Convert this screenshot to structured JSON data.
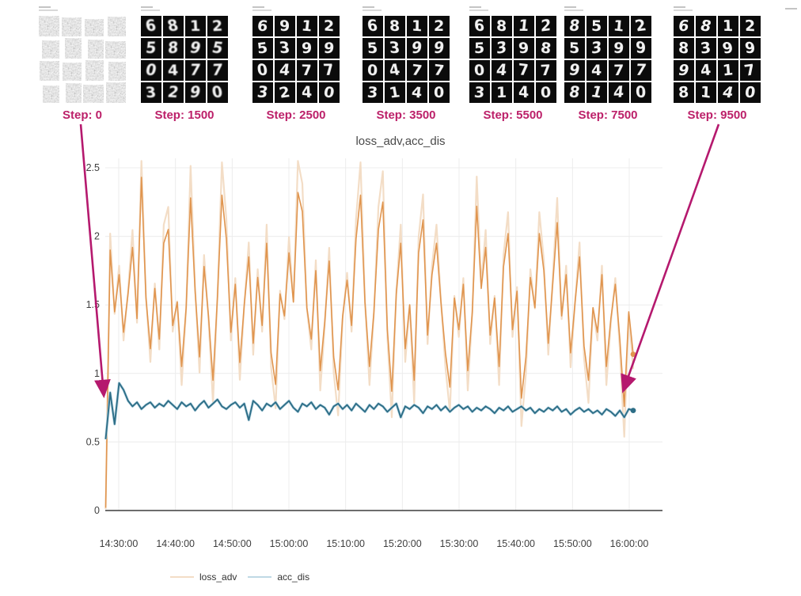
{
  "accent_color": "#b5196e",
  "step_label_color": "#bc2069",
  "panels": [
    {
      "label": "Step: 0",
      "type": "noise",
      "digits": null
    },
    {
      "label": "Step: 1500",
      "type": "digits",
      "digits": [
        [
          6,
          8,
          1,
          2
        ],
        [
          5,
          8,
          9,
          5
        ],
        [
          0,
          4,
          7,
          7
        ],
        [
          3,
          2,
          9,
          0
        ]
      ]
    },
    {
      "label": "Step: 2500",
      "type": "digits",
      "digits": [
        [
          6,
          9,
          1,
          2
        ],
        [
          5,
          3,
          9,
          9
        ],
        [
          0,
          4,
          7,
          7
        ],
        [
          3,
          2,
          4,
          0
        ]
      ]
    },
    {
      "label": "Step: 3500",
      "type": "digits",
      "digits": [
        [
          6,
          8,
          1,
          2
        ],
        [
          5,
          3,
          9,
          9
        ],
        [
          0,
          4,
          7,
          7
        ],
        [
          3,
          1,
          4,
          0
        ]
      ]
    },
    {
      "label": "Step: 5500",
      "type": "digits",
      "digits": [
        [
          6,
          8,
          1,
          2
        ],
        [
          5,
          3,
          9,
          8
        ],
        [
          0,
          4,
          7,
          7
        ],
        [
          3,
          1,
          4,
          0
        ]
      ]
    },
    {
      "label": "Step: 7500",
      "type": "digits",
      "digits": [
        [
          8,
          5,
          1,
          2
        ],
        [
          5,
          3,
          9,
          9
        ],
        [
          9,
          4,
          7,
          7
        ],
        [
          8,
          1,
          4,
          0
        ]
      ]
    },
    {
      "label": "Step: 9500",
      "type": "digits",
      "digits": [
        [
          6,
          8,
          1,
          2
        ],
        [
          8,
          3,
          9,
          9
        ],
        [
          9,
          4,
          1,
          7
        ],
        [
          8,
          1,
          4,
          0
        ]
      ]
    }
  ],
  "chart_data": {
    "type": "line",
    "title": "loss_adv,acc_dis",
    "xlabel": "",
    "ylabel": "",
    "ylim": [
      0,
      2.6
    ],
    "y_ticks": [
      0,
      0.5,
      1,
      1.5,
      2,
      2.5
    ],
    "x_tick_labels": [
      "14:30:00",
      "14:40:00",
      "14:50:00",
      "15:00:00",
      "15:10:00",
      "15:20:00",
      "15:30:00",
      "15:40:00",
      "15:50:00",
      "16:00:00"
    ],
    "x_tick_minutes": [
      0,
      10,
      20,
      30,
      40,
      50,
      60,
      70,
      80,
      90
    ],
    "t_start_min": -2.3,
    "t_end_min": 90.7,
    "grid": true,
    "legend_position": "bottom-left",
    "series": [
      {
        "name": "loss_adv",
        "color": "#e0954f",
        "light_color": "#f3ddc6",
        "values": [
          0.02,
          1.9,
          1.45,
          1.72,
          1.3,
          1.58,
          1.92,
          1.4,
          2.43,
          1.55,
          1.18,
          1.62,
          1.25,
          1.95,
          2.05,
          1.35,
          1.52,
          1.05,
          1.48,
          2.28,
          1.6,
          1.12,
          1.78,
          1.42,
          0.95,
          1.55,
          2.3,
          1.98,
          1.3,
          1.65,
          1.08,
          1.5,
          1.85,
          1.22,
          1.7,
          1.35,
          1.95,
          1.15,
          0.92,
          1.58,
          1.42,
          1.88,
          1.52,
          2.32,
          2.18,
          1.48,
          1.25,
          1.75,
          1.02,
          1.38,
          1.82,
          1.12,
          0.88,
          1.42,
          1.68,
          1.35,
          1.98,
          2.3,
          1.52,
          1.05,
          1.45,
          2.05,
          2.25,
          1.32,
          0.87,
          1.58,
          1.95,
          1.18,
          1.5,
          0.95,
          1.88,
          2.12,
          1.28,
          1.72,
          1.95,
          1.52,
          1.15,
          0.9,
          1.55,
          1.32,
          1.65,
          1.02,
          1.45,
          2.22,
          1.62,
          1.92,
          1.28,
          1.55,
          1.05,
          1.78,
          2.02,
          1.32,
          1.6,
          0.82,
          1.12,
          1.7,
          1.48,
          2.02,
          1.75,
          1.22,
          1.65,
          2.1,
          1.42,
          1.72,
          1.15,
          1.52,
          1.85,
          1.2,
          0.95,
          1.48,
          1.3,
          1.72,
          1.05,
          1.4,
          1.65,
          1.25,
          0.76,
          1.45,
          1.14
        ]
      },
      {
        "name": "acc_dis",
        "color": "#2d6e87",
        "light_color": "#bfd9e5",
        "values": [
          0.52,
          0.86,
          0.63,
          0.93,
          0.88,
          0.8,
          0.76,
          0.79,
          0.74,
          0.77,
          0.79,
          0.75,
          0.78,
          0.76,
          0.8,
          0.77,
          0.74,
          0.79,
          0.76,
          0.78,
          0.73,
          0.77,
          0.8,
          0.75,
          0.78,
          0.81,
          0.76,
          0.74,
          0.77,
          0.79,
          0.75,
          0.78,
          0.66,
          0.8,
          0.77,
          0.73,
          0.78,
          0.76,
          0.79,
          0.74,
          0.77,
          0.8,
          0.75,
          0.72,
          0.78,
          0.76,
          0.79,
          0.74,
          0.77,
          0.75,
          0.7,
          0.76,
          0.78,
          0.74,
          0.77,
          0.73,
          0.78,
          0.75,
          0.72,
          0.77,
          0.74,
          0.78,
          0.76,
          0.72,
          0.75,
          0.78,
          0.68,
          0.76,
          0.74,
          0.77,
          0.75,
          0.71,
          0.76,
          0.74,
          0.77,
          0.73,
          0.76,
          0.72,
          0.75,
          0.77,
          0.74,
          0.76,
          0.72,
          0.75,
          0.73,
          0.76,
          0.74,
          0.71,
          0.75,
          0.73,
          0.76,
          0.72,
          0.74,
          0.76,
          0.73,
          0.75,
          0.71,
          0.74,
          0.72,
          0.75,
          0.73,
          0.76,
          0.72,
          0.74,
          0.7,
          0.73,
          0.75,
          0.72,
          0.74,
          0.71,
          0.73,
          0.7,
          0.74,
          0.72,
          0.69,
          0.73,
          0.68,
          0.74,
          0.73
        ]
      }
    ]
  }
}
